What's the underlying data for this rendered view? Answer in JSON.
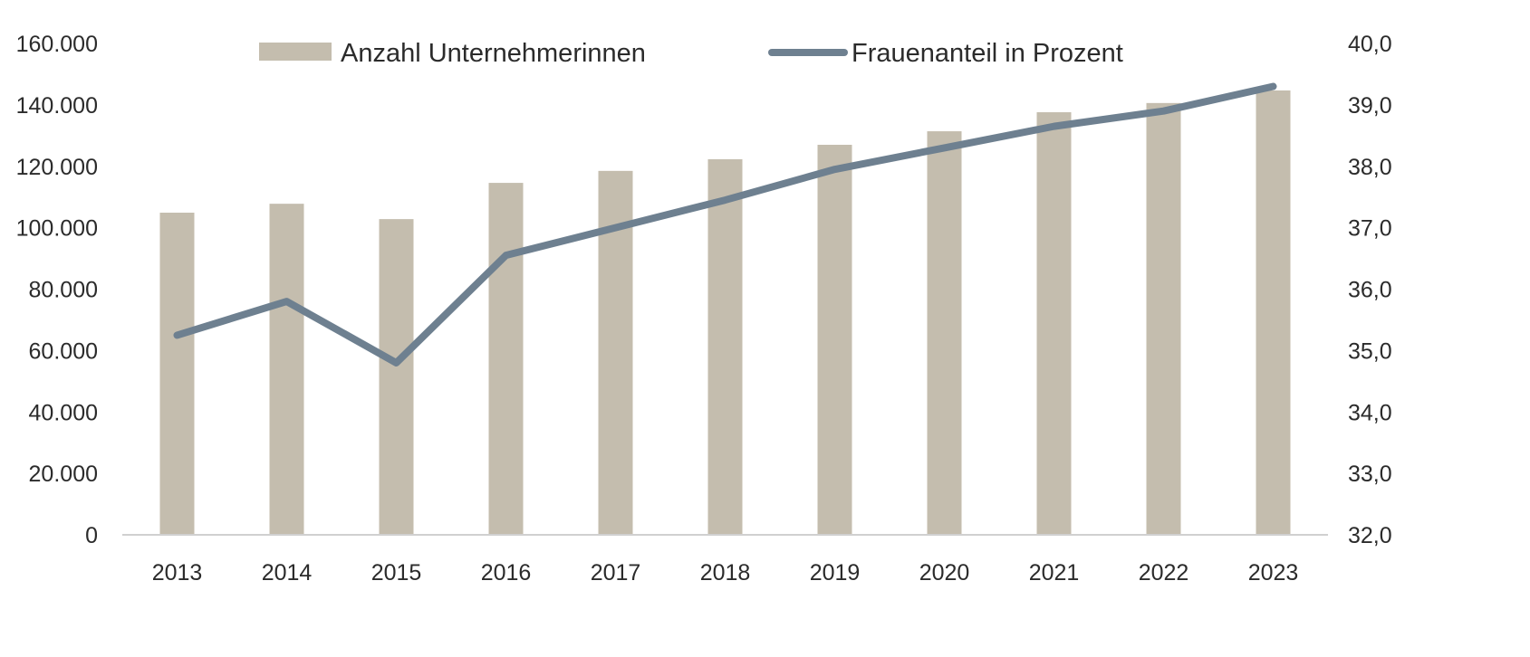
{
  "chart_data": {
    "type": "bar+line",
    "categories": [
      "2013",
      "2014",
      "2015",
      "2016",
      "2017",
      "2018",
      "2019",
      "2020",
      "2021",
      "2022",
      "2023"
    ],
    "series": [
      {
        "name": "Anzahl Unternehmerinnen",
        "type": "bar",
        "axis": "left",
        "values": [
          104900,
          107800,
          102800,
          114600,
          118500,
          122300,
          127000,
          131400,
          137600,
          140600,
          144700
        ]
      },
      {
        "name": "Frauenanteil in Prozent",
        "type": "line",
        "axis": "right",
        "values": [
          35.25,
          35.8,
          34.8,
          36.55,
          37.0,
          37.45,
          37.95,
          38.3,
          38.65,
          38.9,
          39.3
        ]
      }
    ],
    "y_left": {
      "min": 0,
      "max": 160000,
      "ticks": [
        "0",
        "20.000",
        "40.000",
        "60.000",
        "80.000",
        "100.000",
        "120.000",
        "140.000",
        "160.000"
      ]
    },
    "y_right": {
      "min": 32,
      "max": 40,
      "ticks": [
        "32,0",
        "33,0",
        "34,0",
        "35,0",
        "36,0",
        "37,0",
        "38,0",
        "39,0",
        "40,0"
      ]
    },
    "grid": false,
    "legend_position": "top",
    "colors": {
      "bar": "#c4bdae",
      "line": "#6e8090",
      "axis": "#d0d0d0"
    }
  }
}
